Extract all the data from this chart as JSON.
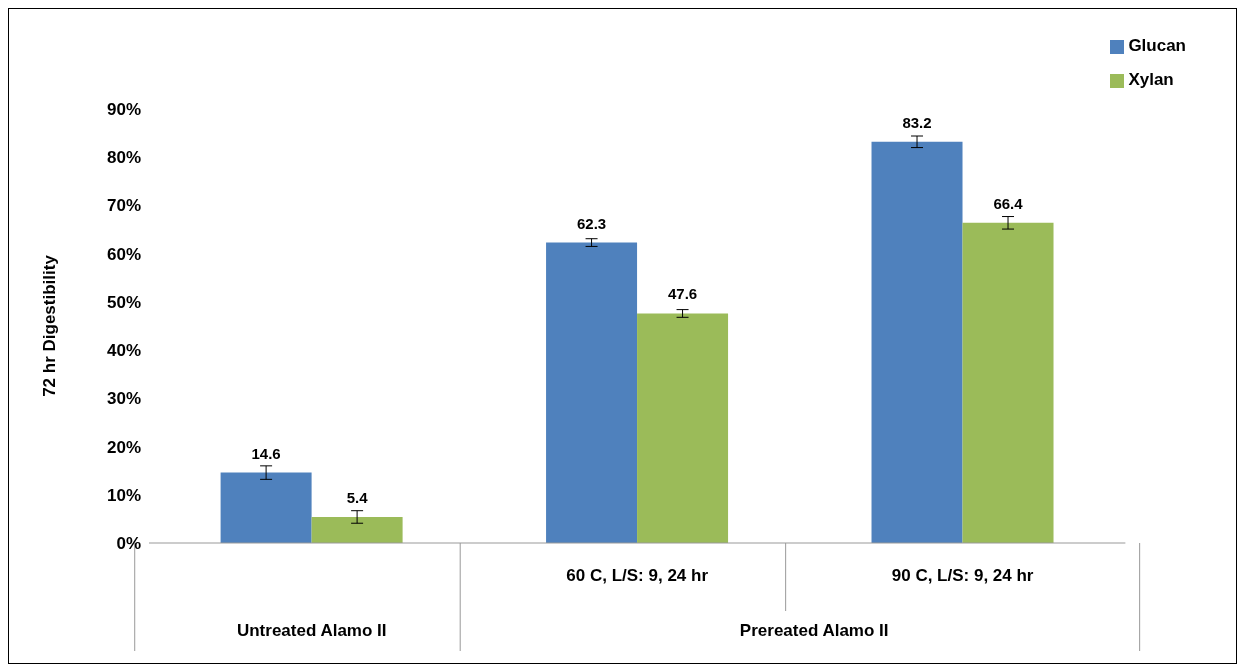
{
  "chart_data": {
    "type": "bar",
    "ylabel": "72 hr Digestibility",
    "categories": [
      null,
      "60 C, L/S: 9, 24 hr",
      "90 C, L/S: 9, 24 hr"
    ],
    "series": [
      {
        "name": "Glucan",
        "color": "#4f81bd",
        "values": [
          14.6,
          62.3,
          83.2
        ],
        "errors": [
          1.4,
          0.8,
          1.2
        ]
      },
      {
        "name": "Xylan",
        "color": "#9bbb59",
        "values": [
          5.4,
          47.6,
          66.4
        ],
        "errors": [
          1.3,
          0.8,
          1.3
        ]
      }
    ],
    "ylim": [
      0,
      90
    ],
    "yticks": [
      {
        "value": 0,
        "label": "0%"
      },
      {
        "value": 10,
        "label": "10%"
      },
      {
        "value": 20,
        "label": "20%"
      },
      {
        "value": 30,
        "label": "30%"
      },
      {
        "value": 40,
        "label": "40%"
      },
      {
        "value": 50,
        "label": "50%"
      },
      {
        "value": 60,
        "label": "60%"
      },
      {
        "value": 70,
        "label": "70%"
      },
      {
        "value": 80,
        "label": "80%"
      },
      {
        "value": 90,
        "label": "90%"
      }
    ],
    "data_labels": true,
    "grid": false,
    "legend": "top right",
    "annotations": [
      "Untreated Alamo II",
      "Prereated Alamo II"
    ]
  }
}
